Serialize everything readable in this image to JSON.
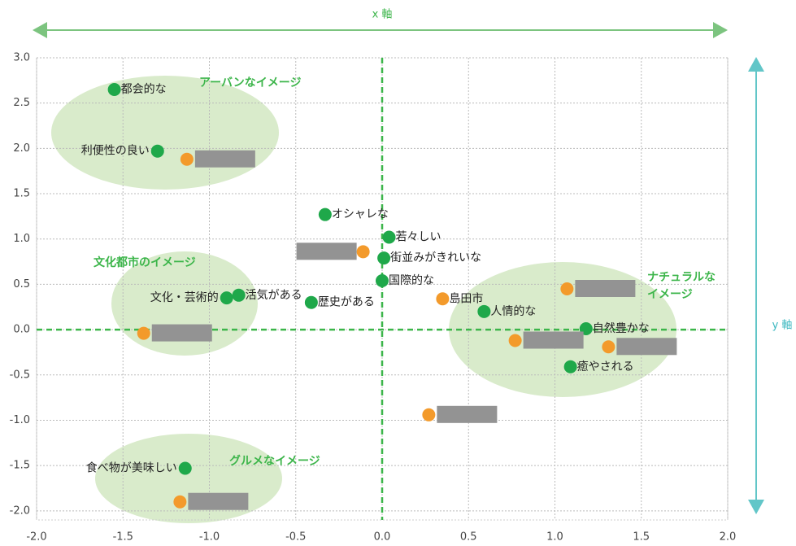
{
  "chart_data": {
    "type": "scatter",
    "xlabel": "x 軸",
    "ylabel": "y 軸",
    "xlim": [
      -2.0,
      2.0
    ],
    "xticks": [
      {
        "value": -2,
        "label": "-2.0"
      },
      -1.5,
      {
        "value": -1,
        "label": "-1.0"
      },
      -0.5,
      {
        "value": 0,
        "label": "0.0"
      },
      0.5,
      {
        "value": 1,
        "label": "1.0"
      },
      1.5,
      {
        "value": 2,
        "label": "2.0"
      }
    ],
    "ylim": [
      -2.1,
      3.0
    ],
    "yticks": [
      {
        "value": -2,
        "label": "-2.0"
      },
      -1.5,
      {
        "value": -1,
        "label": "-1.0"
      },
      -0.5,
      {
        "value": 0,
        "label": "0.0"
      },
      0.5,
      {
        "value": 1,
        "label": "1.0"
      },
      1.5,
      {
        "value": 2,
        "label": "2.0"
      },
      2.5,
      {
        "value": 3,
        "label": "3.0"
      }
    ],
    "grid": true,
    "annotations": [
      [
        "アーバンなイメージ"
      ],
      [
        "文化都市のイメージ"
      ],
      [
        "ナチュラルな",
        "イメージ"
      ],
      [
        "グルメなイメージ"
      ]
    ],
    "series": [
      {
        "color": "#1fa84a",
        "x": [
          -1.55,
          -1.3,
          -0.33,
          0.04,
          0.01,
          0.0,
          -0.9,
          -0.83,
          -0.41,
          0.59,
          1.18,
          1.09,
          -1.14
        ],
        "y": [
          2.65,
          1.97,
          1.27,
          1.02,
          0.79,
          0.54,
          0.35,
          0.38,
          0.3,
          0.2,
          0.01,
          -0.41,
          -1.53
        ],
        "labels": [
          "都会的な",
          "利便性の良い",
          "オシャレな",
          "若々しい",
          "街並みがきれいな",
          "国際的な",
          "文化・芸術的",
          "活気がある",
          "歴史がある",
          "人情的な",
          "自然豊かな",
          "癒やされる",
          "食べ物が美味しい"
        ]
      },
      {
        "color": "#f39a2b",
        "x": [
          -1.13,
          -0.11,
          -1.38,
          1.07,
          0.77,
          1.31,
          0.27,
          -1.17,
          0.35
        ],
        "y": [
          1.88,
          0.86,
          -0.04,
          0.45,
          -0.12,
          -0.19,
          -0.94,
          -1.9,
          0.34
        ],
        "labels": [
          null,
          null,
          null,
          null,
          null,
          null,
          null,
          null,
          "島田市"
        ]
      }
    ]
  }
}
